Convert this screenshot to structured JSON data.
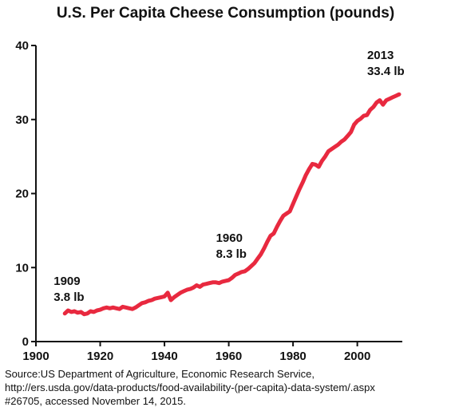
{
  "chart_data": {
    "type": "line",
    "title": "U.S. Per Capita Cheese Consumption (pounds)",
    "xlabel": "",
    "ylabel": "",
    "xlim": [
      1900,
      2014
    ],
    "ylim": [
      0,
      40
    ],
    "xticks": [
      1900,
      1920,
      1940,
      1960,
      1980,
      2000
    ],
    "yticks": [
      0,
      10,
      20,
      30,
      40
    ],
    "grid": false,
    "line_color": "#e8293f",
    "series": [
      {
        "x": [
          1909,
          1910,
          1911,
          1912,
          1913,
          1914,
          1915,
          1916,
          1917,
          1918,
          1919,
          1920,
          1921,
          1922,
          1923,
          1924,
          1925,
          1926,
          1927,
          1928,
          1929,
          1930,
          1931,
          1932,
          1933,
          1934,
          1935,
          1936,
          1937,
          1938,
          1939,
          1940,
          1941,
          1942,
          1943,
          1944,
          1945,
          1946,
          1947,
          1948,
          1949,
          1950,
          1951,
          1952,
          1953,
          1954,
          1955,
          1956,
          1957,
          1958,
          1959,
          1960,
          1961,
          1962,
          1963,
          1964,
          1965,
          1966,
          1967,
          1968,
          1969,
          1970,
          1971,
          1972,
          1973,
          1974,
          1975,
          1976,
          1977,
          1978,
          1979,
          1980,
          1981,
          1982,
          1983,
          1984,
          1985,
          1986,
          1987,
          1988,
          1989,
          1990,
          1991,
          1992,
          1993,
          1994,
          1995,
          1996,
          1997,
          1998,
          1999,
          2000,
          2001,
          2002,
          2003,
          2004,
          2005,
          2006,
          2007,
          2008,
          2009,
          2010,
          2011,
          2012,
          2013
        ],
        "values": [
          3.8,
          4.2,
          4.0,
          4.1,
          3.9,
          4.0,
          3.7,
          3.8,
          4.1,
          4.0,
          4.2,
          4.3,
          4.5,
          4.6,
          4.5,
          4.6,
          4.5,
          4.4,
          4.7,
          4.6,
          4.5,
          4.4,
          4.6,
          4.9,
          5.2,
          5.3,
          5.5,
          5.6,
          5.8,
          5.9,
          6.0,
          6.1,
          6.6,
          5.6,
          6.0,
          6.3,
          6.6,
          6.8,
          7.0,
          7.1,
          7.3,
          7.6,
          7.4,
          7.7,
          7.8,
          7.9,
          8.0,
          8.0,
          7.9,
          8.1,
          8.2,
          8.3,
          8.6,
          9.0,
          9.2,
          9.4,
          9.5,
          9.8,
          10.2,
          10.6,
          11.2,
          11.8,
          12.6,
          13.5,
          14.3,
          14.6,
          15.5,
          16.3,
          17.0,
          17.3,
          17.6,
          18.6,
          19.6,
          20.6,
          21.5,
          22.5,
          23.3,
          24.0,
          23.9,
          23.6,
          24.4,
          25.0,
          25.7,
          26.0,
          26.3,
          26.6,
          27.0,
          27.3,
          27.8,
          28.3,
          29.3,
          29.8,
          30.1,
          30.5,
          30.6,
          31.3,
          31.7,
          32.3,
          32.6,
          32.0,
          32.6,
          32.8,
          33.0,
          33.2,
          33.4
        ]
      }
    ],
    "annotations": [
      {
        "year": 1909,
        "lines": [
          "1909",
          "3.8 lb"
        ]
      },
      {
        "year": 1960,
        "lines": [
          "1960",
          "8.3 lb"
        ]
      },
      {
        "year": 2013,
        "lines": [
          "2013",
          "33.4 lb"
        ]
      }
    ]
  },
  "source": {
    "line1": "Source:US  Department of Agriculture, Economic Research Service,",
    "line2": "http://ers.usda.gov/data-products/food-availability-(per-capita)-data-system/.aspx",
    "line3": "#26705, accessed November 14, 2015."
  }
}
